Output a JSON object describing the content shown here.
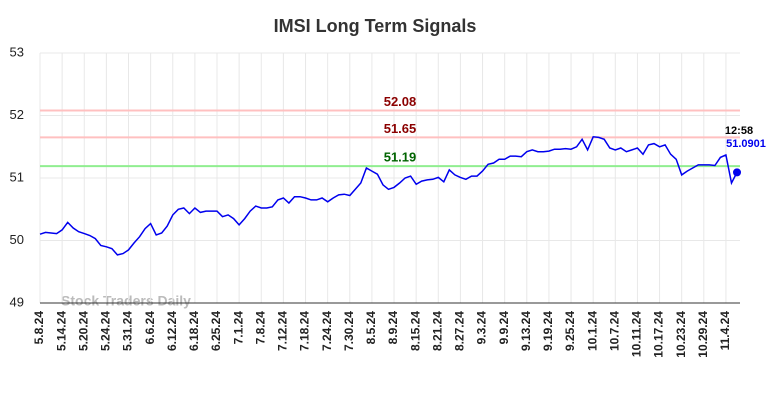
{
  "chart_data": {
    "type": "line",
    "title": "IMSI Long Term Signals",
    "categories": [
      "5.8.24",
      null,
      null,
      null,
      "5.14.24",
      null,
      null,
      null,
      "5.20.24",
      null,
      null,
      null,
      "5.24.24",
      null,
      null,
      null,
      "5.31.24",
      null,
      null,
      null,
      "6.6.24",
      null,
      null,
      null,
      "6.12.24",
      null,
      null,
      null,
      "6.18.24",
      null,
      null,
      null,
      "6.25.24",
      null,
      null,
      null,
      "7.1.24",
      null,
      null,
      null,
      "7.8.24",
      null,
      null,
      null,
      "7.12.24",
      null,
      null,
      null,
      "7.18.24",
      null,
      null,
      null,
      "7.24.24",
      null,
      null,
      null,
      "7.30.24",
      null,
      null,
      null,
      "8.5.24",
      null,
      null,
      null,
      "8.9.24",
      null,
      null,
      null,
      "8.15.24",
      null,
      null,
      null,
      "8.21.24",
      null,
      null,
      null,
      "8.27.24",
      null,
      null,
      null,
      "9.3.24",
      null,
      null,
      null,
      "9.9.24",
      null,
      null,
      null,
      "9.13.24",
      null,
      null,
      null,
      "9.19.24",
      null,
      null,
      null,
      "9.25.24",
      null,
      null,
      null,
      "10.1.24",
      null,
      null,
      null,
      "10.7.24",
      null,
      null,
      null,
      "10.11.24",
      null,
      null,
      null,
      "10.17.24",
      null,
      null,
      null,
      "10.23.24",
      null,
      null,
      null,
      "10.29.24",
      null,
      null,
      null,
      "11.4.24",
      null,
      null
    ],
    "values": [
      50.1,
      50.13,
      50.12,
      50.11,
      50.17,
      50.29,
      50.2,
      50.14,
      50.11,
      50.08,
      50.03,
      49.92,
      49.9,
      49.87,
      49.77,
      49.79,
      49.85,
      49.96,
      50.06,
      50.19,
      50.27,
      50.09,
      50.12,
      50.23,
      50.41,
      50.5,
      50.52,
      50.43,
      50.52,
      50.45,
      50.47,
      50.47,
      50.47,
      50.38,
      50.41,
      50.35,
      50.25,
      50.35,
      50.47,
      50.55,
      50.52,
      50.52,
      50.54,
      50.65,
      50.68,
      50.6,
      50.7,
      50.7,
      50.68,
      50.65,
      50.65,
      50.68,
      50.62,
      50.68,
      50.73,
      50.74,
      50.72,
      50.82,
      50.92,
      51.16,
      51.11,
      51.06,
      50.89,
      50.82,
      50.85,
      50.92,
      51.0,
      51.03,
      50.9,
      50.95,
      50.97,
      50.98,
      51.01,
      50.94,
      51.13,
      51.05,
      51.01,
      50.98,
      51.03,
      51.03,
      51.11,
      51.22,
      51.24,
      51.3,
      51.3,
      51.35,
      51.35,
      51.34,
      51.42,
      51.45,
      51.42,
      51.42,
      51.43,
      51.46,
      51.46,
      51.47,
      51.46,
      51.5,
      51.62,
      51.45,
      51.66,
      51.65,
      51.62,
      51.48,
      51.45,
      51.48,
      51.42,
      51.45,
      51.48,
      51.38,
      51.53,
      51.55,
      51.5,
      51.53,
      51.38,
      51.3,
      51.05,
      51.11,
      51.16,
      51.21,
      51.21,
      51.21,
      51.2,
      51.33,
      51.37,
      50.92,
      51.0901
    ],
    "color": "#0000ee",
    "last_time": "12:58",
    "hlines": [
      {
        "value": 52.08,
        "color": "#ffc0c0",
        "label_color": "#8b0000"
      },
      {
        "value": 51.65,
        "color": "#ffc0c0",
        "label_color": "#8b0000"
      },
      {
        "value": 51.19,
        "color": "#90ee90",
        "label_color": "#006400"
      }
    ],
    "watermark": "Stock Traders Daily",
    "ylim": [
      49,
      53
    ],
    "yticks": [
      49,
      50,
      51,
      52,
      53
    ],
    "grid": true
  }
}
